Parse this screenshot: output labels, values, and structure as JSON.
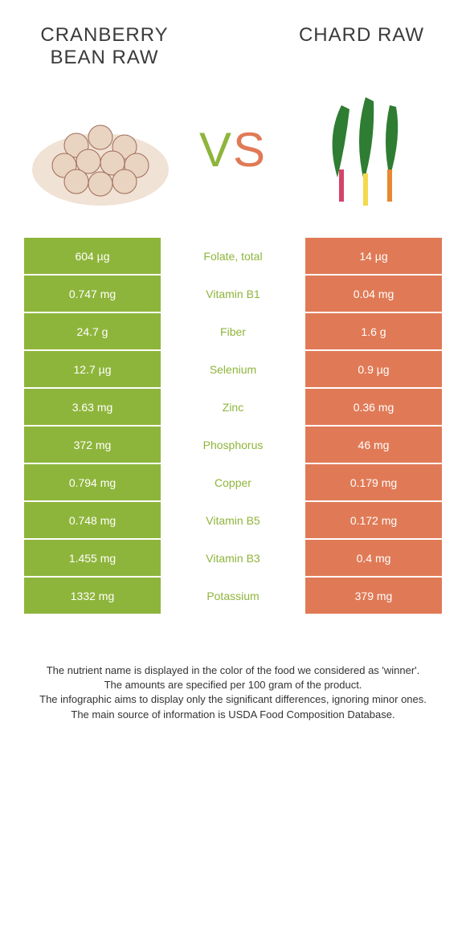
{
  "colors": {
    "food1": "#8eb53b",
    "food2": "#e07a56",
    "title": "#3a3a3a"
  },
  "food1": {
    "title": "CRANBERRY BEAN RAW"
  },
  "food2": {
    "title": "CHARD RAW"
  },
  "vs_label": "VS",
  "rows": [
    {
      "left": "604 µg",
      "mid": "Folate, total",
      "right": "14 µg",
      "winner": "food1"
    },
    {
      "left": "0.747 mg",
      "mid": "Vitamin B1",
      "right": "0.04 mg",
      "winner": "food1"
    },
    {
      "left": "24.7 g",
      "mid": "Fiber",
      "right": "1.6 g",
      "winner": "food1"
    },
    {
      "left": "12.7 µg",
      "mid": "Selenium",
      "right": "0.9 µg",
      "winner": "food1"
    },
    {
      "left": "3.63 mg",
      "mid": "Zinc",
      "right": "0.36 mg",
      "winner": "food1"
    },
    {
      "left": "372 mg",
      "mid": "Phosphorus",
      "right": "46 mg",
      "winner": "food1"
    },
    {
      "left": "0.794 mg",
      "mid": "Copper",
      "right": "0.179 mg",
      "winner": "food1"
    },
    {
      "left": "0.748 mg",
      "mid": "Vitamin B5",
      "right": "0.172 mg",
      "winner": "food1"
    },
    {
      "left": "1.455 mg",
      "mid": "Vitamin B3",
      "right": "0.4 mg",
      "winner": "food1"
    },
    {
      "left": "1332 mg",
      "mid": "Potassium",
      "right": "379 mg",
      "winner": "food1"
    }
  ],
  "footer": {
    "line1": "The nutrient name is displayed in the color of the food we considered as 'winner'.",
    "line2": "The amounts are specified per 100 gram of the product.",
    "line3": "The infographic aims to display only the significant differences, ignoring minor ones.",
    "line4": "The main source of information is USDA Food Composition Database."
  }
}
